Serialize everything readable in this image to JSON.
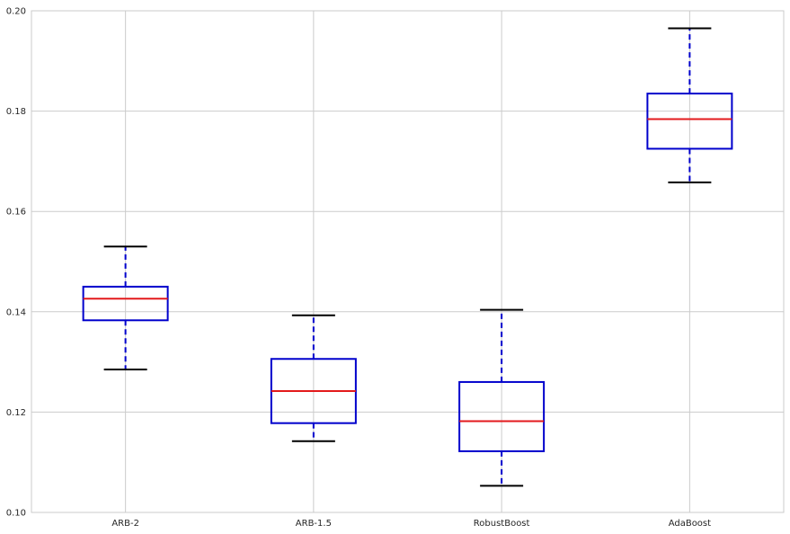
{
  "chart_data": {
    "type": "box",
    "title": "",
    "xlabel": "",
    "ylabel": "",
    "categories": [
      "ARB-2",
      "ARB-1.5",
      "RobustBoost",
      "AdaBoost"
    ],
    "boxes": [
      {
        "label": "ARB-2",
        "whisker_low": 0.1285,
        "q1": 0.1383,
        "median": 0.1426,
        "q3": 0.145,
        "whisker_high": 0.153
      },
      {
        "label": "ARB-1.5",
        "whisker_low": 0.1142,
        "q1": 0.1178,
        "median": 0.1242,
        "q3": 0.1306,
        "whisker_high": 0.1393
      },
      {
        "label": "RobustBoost",
        "whisker_low": 0.1053,
        "q1": 0.1122,
        "median": 0.1182,
        "q3": 0.126,
        "whisker_high": 0.1404
      },
      {
        "label": "AdaBoost",
        "whisker_low": 0.1658,
        "q1": 0.1725,
        "median": 0.1784,
        "q3": 0.1835,
        "whisker_high": 0.1965
      }
    ],
    "ylim": [
      0.1,
      0.2
    ],
    "yticks": [
      "0.10",
      "0.12",
      "0.14",
      "0.16",
      "0.18",
      "0.20"
    ],
    "grid": true,
    "colors": {
      "box": "#0000cc",
      "median": "#e31a1c",
      "cap": "#000000",
      "grid": "#cbcbcb"
    }
  }
}
